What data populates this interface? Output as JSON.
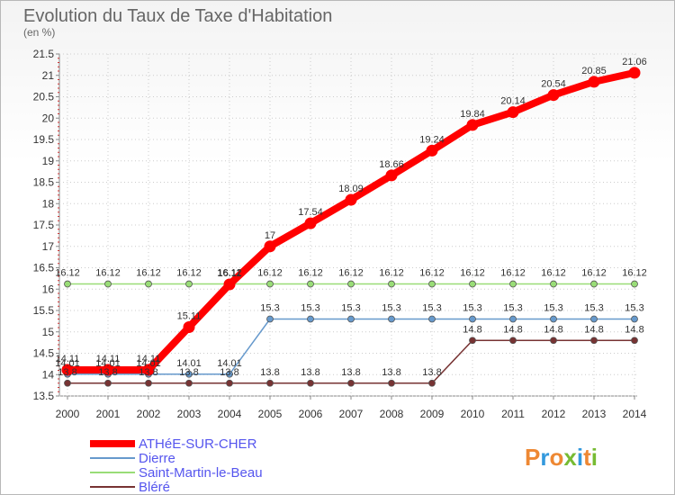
{
  "chart_data": {
    "type": "line",
    "title": "Evolution du Taux de Taxe d'Habitation",
    "subtitle": "(en %)",
    "x": [
      "2000",
      "2001",
      "2002",
      "2003",
      "2004",
      "2005",
      "2006",
      "2007",
      "2008",
      "2009",
      "2010",
      "2011",
      "2012",
      "2013",
      "2014"
    ],
    "ylim": [
      13.5,
      21.5
    ],
    "yticks": [
      "13.5",
      "14",
      "14.5",
      "15",
      "15.5",
      "16",
      "16.5",
      "17",
      "17.5",
      "18",
      "18.5",
      "19",
      "19.5",
      "20",
      "20.5",
      "21",
      "21.5"
    ],
    "grid": true,
    "legend_position": "bottom-left",
    "series": [
      {
        "name": "ATHéE-SUR-CHER",
        "color": "#ff0000",
        "values": [
          14.11,
          14.11,
          14.11,
          15.11,
          16.11,
          17,
          17.54,
          18.09,
          18.66,
          19.24,
          19.84,
          20.14,
          20.54,
          20.85,
          21.06
        ],
        "labels": [
          "14.11",
          "14.11",
          "14.11",
          "15.11",
          "16.11",
          "17",
          "17.54",
          "18.09",
          "18.66",
          "19.24",
          "19.84",
          "20.14",
          "20.54",
          "20.85",
          "21.06"
        ]
      },
      {
        "name": "Dierre",
        "color": "#6699cc",
        "values": [
          14.01,
          14.01,
          14.01,
          14.01,
          14.01,
          15.3,
          15.3,
          15.3,
          15.3,
          15.3,
          15.3,
          15.3,
          15.3,
          15.3,
          15.3
        ],
        "labels": [
          "14.01",
          "14.01",
          "14.01",
          "14.01",
          "14.01",
          "15.3",
          "15.3",
          "15.3",
          "15.3",
          "15.3",
          "15.3",
          "15.3",
          "15.3",
          "15.3",
          "15.3"
        ]
      },
      {
        "name": "Saint-Martin-le-Beau",
        "color": "#99dd77",
        "values": [
          16.12,
          16.12,
          16.12,
          16.12,
          16.12,
          16.12,
          16.12,
          16.12,
          16.12,
          16.12,
          16.12,
          16.12,
          16.12,
          16.12,
          16.12
        ],
        "labels": [
          "16.12",
          "16.12",
          "16.12",
          "16.12",
          "16.12",
          "16.12",
          "16.12",
          "16.12",
          "16.12",
          "16.12",
          "16.12",
          "16.12",
          "16.12",
          "16.12",
          "16.12"
        ]
      },
      {
        "name": "Bléré",
        "color": "#773333",
        "values": [
          13.8,
          13.8,
          13.8,
          13.8,
          13.8,
          13.8,
          13.8,
          13.8,
          13.8,
          13.8,
          14.8,
          14.8,
          14.8,
          14.8,
          14.8
        ],
        "labels": [
          "13.8",
          "13.8",
          "13.8",
          "13.8",
          "13.8",
          "13.8",
          "13.8",
          "13.8",
          "13.8",
          "13.8",
          "14.8",
          "14.8",
          "14.8",
          "14.8",
          "14.8"
        ]
      }
    ]
  },
  "logo": {
    "text": "Proxiti",
    "colors": [
      "#ee8833",
      "#3399dd",
      "#ee8833",
      "#77bb33",
      "#3399dd",
      "#ee8833",
      "#77bb33"
    ]
  }
}
